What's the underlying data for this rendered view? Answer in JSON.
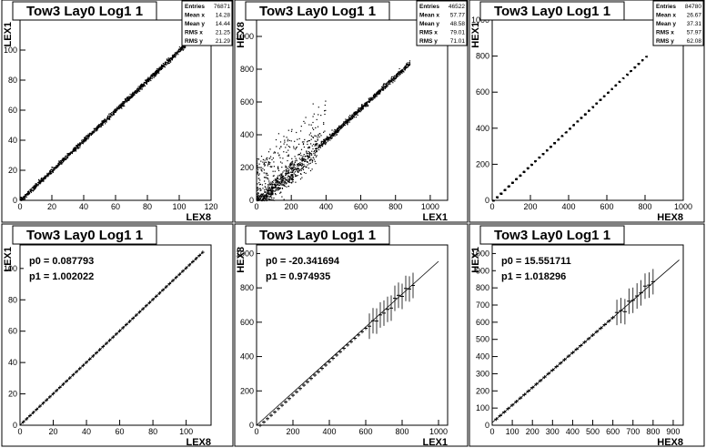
{
  "chart_data": [
    {
      "type": "scatter",
      "title": "Tow3 Lay0 Log1 1",
      "xlabel": "LEX8",
      "ylabel": "LEX1",
      "xlim": [
        0,
        120
      ],
      "ylim": [
        0,
        120
      ],
      "xticks": [
        0,
        20,
        40,
        60,
        80,
        100,
        120
      ],
      "yticks": [
        0,
        20,
        40,
        60,
        80,
        100
      ],
      "stats": [
        {
          "label": "Entries",
          "value": "76871"
        },
        {
          "label": "Mean x",
          "value": "14.28"
        },
        {
          "label": "Mean y",
          "value": "14.44"
        },
        {
          "label": "RMS x",
          "value": "21.25"
        },
        {
          "label": "RMS y",
          "value": "21.29"
        }
      ],
      "relation": {
        "slope": 1.0,
        "intercept": 0.2,
        "xmin": 0,
        "xmax": 108
      }
    },
    {
      "type": "scatter",
      "title": "Tow3 Lay0 Log1 1",
      "xlabel": "LEX1",
      "ylabel": "HEX8",
      "xlim": [
        0,
        1100
      ],
      "ylim": [
        0,
        1100
      ],
      "xticks": [
        0,
        200,
        400,
        600,
        800,
        1000
      ],
      "yticks": [
        0,
        200,
        400,
        600,
        800,
        1000
      ],
      "stats": [
        {
          "label": "Entries",
          "value": "46522"
        },
        {
          "label": "Mean x",
          "value": "57.77"
        },
        {
          "label": "Mean y",
          "value": "48.58"
        },
        {
          "label": "RMS x",
          "value": "79.01"
        },
        {
          "label": "RMS y",
          "value": "71.01"
        }
      ],
      "relation": {
        "slope": 0.975,
        "intercept": -20,
        "xmin": 0,
        "xmax": 880
      }
    },
    {
      "type": "scatter",
      "title": "Tow3 Lay0 Log1 1",
      "xlabel": "HEX8",
      "ylabel": "HEX1",
      "xlim": [
        0,
        1000
      ],
      "ylim": [
        0,
        1000
      ],
      "xticks": [
        0,
        200,
        400,
        600,
        800,
        1000
      ],
      "yticks": [
        0,
        200,
        400,
        600,
        800,
        1000
      ],
      "stats": [
        {
          "label": "Entries",
          "value": "84780"
        },
        {
          "label": "Mean x",
          "value": "26.67"
        },
        {
          "label": "Mean y",
          "value": "37.31"
        },
        {
          "label": "RMS x",
          "value": "57.97"
        },
        {
          "label": "RMS y",
          "value": "62.08"
        }
      ],
      "relation": {
        "slope": 1.0,
        "intercept": 0,
        "xmin": 0,
        "xmax": 800
      }
    },
    {
      "type": "line",
      "title": "Tow3 Lay0 Log1 1",
      "xlabel": "LEX8",
      "ylabel": "LEX1",
      "xlim": [
        0,
        115
      ],
      "ylim": [
        0,
        115
      ],
      "xticks": [
        0,
        20,
        40,
        60,
        80,
        100
      ],
      "yticks": [
        0,
        20,
        40,
        60,
        80,
        100
      ],
      "fit": [
        {
          "label": "p0",
          "value": "0.087793"
        },
        {
          "label": "p1",
          "value": "1.002022"
        }
      ],
      "fit_params": {
        "p0": 0.087793,
        "p1": 1.002022
      },
      "fit_range": [
        0,
        110
      ],
      "profile": {
        "xmin": 2,
        "xmax": 110,
        "step": 2
      }
    },
    {
      "type": "line",
      "title": "Tow3 Lay0 Log1 1",
      "xlabel": "LEX1",
      "ylabel": "HEX8",
      "xlim": [
        0,
        1050
      ],
      "ylim": [
        0,
        1050
      ],
      "xticks": [
        0,
        200,
        400,
        600,
        800,
        1000
      ],
      "yticks": [
        0,
        200,
        400,
        600,
        800,
        1000
      ],
      "fit": [
        {
          "label": "p0",
          "value": "-20.341694"
        },
        {
          "label": "p1",
          "value": "0.974935"
        }
      ],
      "fit_params": {
        "p0": -20.341694,
        "p1": 0.974935
      },
      "fit_range": [
        0,
        1000
      ],
      "profile": {
        "xmin": 20,
        "xmax": 860,
        "step": 20
      }
    },
    {
      "type": "line",
      "title": "Tow3 Lay0 Log1 1",
      "xlabel": "HEX8",
      "ylabel": "HEX1",
      "xlim": [
        0,
        950
      ],
      "ylim": [
        0,
        1050
      ],
      "xticks": [
        0,
        100,
        200,
        300,
        400,
        500,
        600,
        700,
        800,
        900
      ],
      "yticks": [
        0,
        100,
        200,
        300,
        400,
        500,
        600,
        700,
        800,
        900,
        1000
      ],
      "fit": [
        {
          "label": "p0",
          "value": "15.551711"
        },
        {
          "label": "p1",
          "value": "1.018296"
        }
      ],
      "fit_params": {
        "p0": 15.551711,
        "p1": 1.018296
      },
      "fit_range": [
        0,
        930
      ],
      "profile": {
        "xmin": 20,
        "xmax": 800,
        "step": 20
      }
    }
  ]
}
